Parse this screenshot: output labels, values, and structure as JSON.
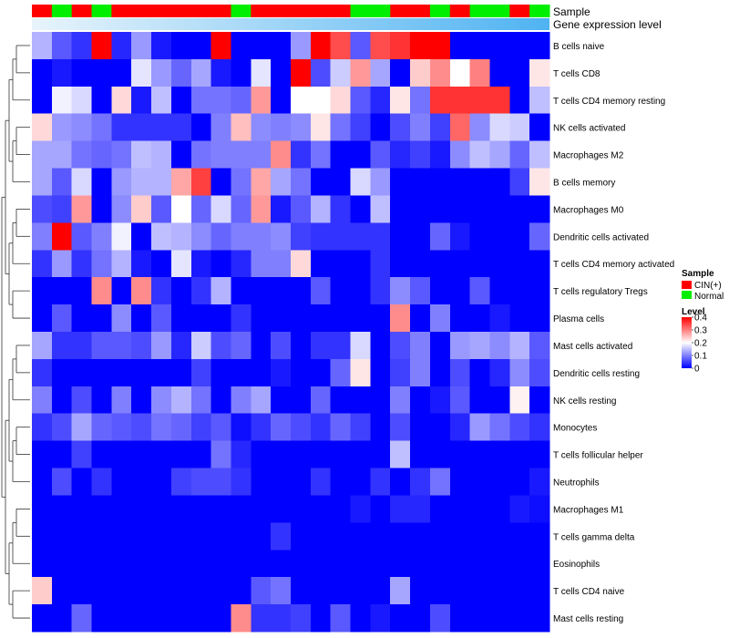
{
  "chart_data": {
    "type": "heatmap",
    "annotation_tracks": [
      {
        "name": "Sample",
        "values": [
          "CIN(+)",
          "Normal",
          "CIN(+)",
          "Normal",
          "CIN(+)",
          "CIN(+)",
          "CIN(+)",
          "CIN(+)",
          "CIN(+)",
          "CIN(+)",
          "Normal",
          "CIN(+)",
          "CIN(+)",
          "CIN(+)",
          "CIN(+)",
          "CIN(+)",
          "Normal",
          "Normal",
          "CIN(+)",
          "CIN(+)",
          "Normal",
          "CIN(+)",
          "Normal",
          "Normal",
          "CIN(+)",
          "Normal"
        ]
      },
      {
        "name": "Gene expression level"
      }
    ],
    "rows": [
      "B cells naive",
      "T cells CD8",
      "T cells CD4 memory resting",
      "NK cells activated",
      "Macrophages M2",
      "B cells memory",
      "Macrophages M0",
      "Dendritic cells activated",
      "T cells CD4 memory activated",
      "T cells regulatory  Tregs",
      "Plasma cells",
      "Mast cells activated",
      "Dendritic cells resting",
      "NK cells resting",
      "Monocytes",
      "T cells follicular helper",
      "Neutrophils",
      "Macrophages M1",
      "T cells gamma delta",
      "Eosinophils",
      "T cells CD4 naive",
      "Mast cells resting"
    ],
    "values": [
      [
        0.14,
        0.07,
        0.04,
        0.4,
        0.03,
        0.12,
        0.02,
        0.0,
        0.0,
        0.4,
        0.0,
        0.0,
        0.0,
        0.12,
        0.4,
        0.34,
        0.07,
        0.34,
        0.36,
        0.4,
        0.4,
        0.0,
        0.0,
        0.0,
        0.0,
        0.0
      ],
      [
        0.0,
        0.02,
        0.0,
        0.0,
        0.0,
        0.18,
        0.12,
        0.08,
        0.13,
        0.02,
        0.0,
        0.18,
        0.0,
        0.4,
        0.06,
        0.16,
        0.28,
        0.13,
        0.0,
        0.24,
        0.29,
        0.2,
        0.3,
        0.0,
        0.0,
        0.22
      ],
      [
        0.0,
        0.19,
        0.17,
        0.0,
        0.23,
        0.02,
        0.15,
        0.0,
        0.09,
        0.09,
        0.08,
        0.28,
        0.0,
        0.2,
        0.2,
        0.23,
        0.07,
        0.03,
        0.22,
        0.09,
        0.36,
        0.36,
        0.36,
        0.36,
        0.0,
        0.15
      ],
      [
        0.23,
        0.12,
        0.11,
        0.09,
        0.04,
        0.04,
        0.04,
        0.04,
        0.0,
        0.1,
        0.25,
        0.11,
        0.1,
        0.11,
        0.22,
        0.09,
        0.05,
        0.0,
        0.06,
        0.1,
        0.05,
        0.32,
        0.11,
        0.17,
        0.16,
        0.0
      ],
      [
        0.13,
        0.13,
        0.09,
        0.08,
        0.09,
        0.15,
        0.14,
        0.0,
        0.09,
        0.1,
        0.1,
        0.1,
        0.29,
        0.04,
        0.09,
        0.0,
        0.0,
        0.07,
        0.03,
        0.05,
        0.02,
        0.11,
        0.15,
        0.13,
        0.08,
        0.15
      ],
      [
        0.13,
        0.07,
        0.17,
        0.0,
        0.12,
        0.14,
        0.14,
        0.27,
        0.35,
        0.0,
        0.09,
        0.27,
        0.13,
        0.09,
        0.0,
        0.0,
        0.17,
        0.12,
        0.0,
        0.0,
        0.0,
        0.0,
        0.0,
        0.0,
        0.05,
        0.22
      ],
      [
        0.06,
        0.05,
        0.28,
        0.0,
        0.11,
        0.24,
        0.07,
        0.2,
        0.08,
        0.17,
        0.08,
        0.28,
        0.02,
        0.07,
        0.14,
        0.04,
        0.0,
        0.15,
        0.0,
        0.0,
        0.0,
        0.0,
        0.0,
        0.0,
        0.0,
        0.0
      ],
      [
        0.1,
        0.4,
        0.07,
        0.1,
        0.19,
        0.0,
        0.15,
        0.14,
        0.11,
        0.08,
        0.1,
        0.1,
        0.11,
        0.05,
        0.04,
        0.04,
        0.04,
        0.04,
        0.0,
        0.0,
        0.08,
        0.02,
        0.0,
        0.0,
        0.0,
        0.08
      ],
      [
        0.04,
        0.12,
        0.04,
        0.09,
        0.14,
        0.02,
        0.0,
        0.18,
        0.02,
        0.0,
        0.03,
        0.1,
        0.1,
        0.23,
        0.0,
        0.0,
        0.0,
        0.04,
        0.0,
        0.0,
        0.0,
        0.0,
        0.0,
        0.0,
        0.0,
        0.0
      ],
      [
        0.0,
        0.0,
        0.0,
        0.29,
        0.0,
        0.29,
        0.04,
        0.0,
        0.04,
        0.14,
        0.0,
        0.0,
        0.0,
        0.0,
        0.07,
        0.0,
        0.0,
        0.04,
        0.11,
        0.07,
        0.0,
        0.0,
        0.07,
        0.0,
        0.0,
        0.0
      ],
      [
        0.0,
        0.07,
        0.0,
        0.0,
        0.11,
        0.0,
        0.07,
        0.0,
        0.0,
        0.0,
        0.04,
        0.0,
        0.0,
        0.0,
        0.0,
        0.0,
        0.0,
        0.0,
        0.29,
        0.0,
        0.1,
        0.0,
        0.0,
        0.02,
        0.0,
        0.0
      ],
      [
        0.13,
        0.04,
        0.04,
        0.07,
        0.07,
        0.06,
        0.12,
        0.03,
        0.16,
        0.06,
        0.08,
        0.0,
        0.06,
        0.0,
        0.04,
        0.04,
        0.17,
        0.0,
        0.06,
        0.1,
        0.0,
        0.12,
        0.13,
        0.11,
        0.14,
        0.07
      ],
      [
        0.04,
        0.0,
        0.0,
        0.0,
        0.0,
        0.0,
        0.0,
        0.0,
        0.05,
        0.0,
        0.0,
        0.0,
        0.02,
        0.0,
        0.0,
        0.08,
        0.22,
        0.0,
        0.05,
        0.1,
        0.0,
        0.06,
        0.0,
        0.03,
        0.11,
        0.06
      ],
      [
        0.1,
        0.0,
        0.06,
        0.0,
        0.1,
        0.0,
        0.11,
        0.14,
        0.09,
        0.0,
        0.1,
        0.13,
        0.0,
        0.0,
        0.08,
        0.0,
        0.0,
        0.0,
        0.1,
        0.0,
        0.02,
        0.07,
        0.0,
        0.0,
        0.21,
        0.0
      ],
      [
        0.04,
        0.06,
        0.13,
        0.08,
        0.07,
        0.06,
        0.09,
        0.08,
        0.05,
        0.07,
        0.01,
        0.04,
        0.08,
        0.06,
        0.04,
        0.08,
        0.05,
        0.0,
        0.06,
        0.0,
        0.0,
        0.03,
        0.12,
        0.09,
        0.06,
        0.04
      ],
      [
        0.0,
        0.0,
        0.05,
        0.0,
        0.0,
        0.0,
        0.0,
        0.0,
        0.0,
        0.09,
        0.03,
        0.0,
        0.0,
        0.0,
        0.0,
        0.0,
        0.0,
        0.0,
        0.15,
        0.0,
        0.0,
        0.0,
        0.0,
        0.0,
        0.0,
        0.0
      ],
      [
        0.0,
        0.06,
        0.0,
        0.04,
        0.0,
        0.0,
        0.0,
        0.05,
        0.06,
        0.06,
        0.04,
        0.0,
        0.0,
        0.0,
        0.04,
        0.0,
        0.0,
        0.04,
        0.0,
        0.04,
        0.09,
        0.0,
        0.0,
        0.0,
        0.0,
        0.02
      ],
      [
        0.0,
        0.0,
        0.0,
        0.0,
        0.0,
        0.0,
        0.0,
        0.0,
        0.0,
        0.0,
        0.0,
        0.0,
        0.0,
        0.0,
        0.0,
        0.0,
        0.02,
        0.0,
        0.03,
        0.03,
        0.0,
        0.0,
        0.0,
        0.0,
        0.02,
        0.01
      ],
      [
        0.0,
        0.0,
        0.0,
        0.0,
        0.0,
        0.0,
        0.0,
        0.0,
        0.0,
        0.0,
        0.0,
        0.0,
        0.04,
        0.0,
        0.0,
        0.0,
        0.0,
        0.0,
        0.0,
        0.0,
        0.0,
        0.0,
        0.0,
        0.0,
        0.0,
        0.0
      ],
      [
        0.0,
        0.0,
        0.0,
        0.0,
        0.0,
        0.0,
        0.0,
        0.0,
        0.0,
        0.0,
        0.0,
        0.0,
        0.0,
        0.0,
        0.0,
        0.0,
        0.0,
        0.0,
        0.0,
        0.0,
        0.0,
        0.0,
        0.0,
        0.0,
        0.0,
        0.0
      ],
      [
        0.24,
        0.0,
        0.0,
        0.0,
        0.0,
        0.0,
        0.0,
        0.0,
        0.0,
        0.0,
        0.0,
        0.07,
        0.09,
        0.0,
        0.0,
        0.0,
        0.0,
        0.0,
        0.13,
        0.0,
        0.0,
        0.0,
        0.0,
        0.0,
        0.0,
        0.0
      ],
      [
        0.0,
        0.0,
        0.08,
        0.0,
        0.0,
        0.0,
        0.0,
        0.0,
        0.0,
        0.0,
        0.29,
        0.04,
        0.04,
        0.05,
        0.0,
        0.07,
        0.0,
        0.02,
        0.0,
        0.0,
        0.06,
        0.0,
        0.0,
        0.0,
        0.0,
        0.0
      ]
    ],
    "legends": [
      {
        "title": "Sample",
        "entries": [
          {
            "label": "CIN(+)",
            "color": "#ff0000"
          },
          {
            "label": "Normal",
            "color": "#00ee00"
          }
        ]
      },
      {
        "title": "Level",
        "ticks": [
          0.4,
          0.3,
          0.2,
          0.1,
          0
        ],
        "colors": {
          "low": "#0000ff",
          "mid": "#ffffff",
          "high": "#ff0000"
        }
      }
    ],
    "scale": {
      "min": 0,
      "mid": 0.2,
      "max": 0.4
    },
    "colors": {
      "cin": "#ff0000",
      "normal": "#00ee00",
      "expression_track": [
        "#e8f4fb",
        "#4fb3f2"
      ]
    },
    "row_dendrogram": true,
    "grid": false
  }
}
